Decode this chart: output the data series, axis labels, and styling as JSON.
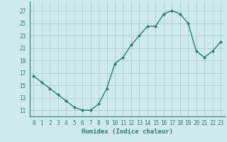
{
  "x": [
    0,
    1,
    2,
    3,
    4,
    5,
    6,
    7,
    8,
    9,
    10,
    11,
    12,
    13,
    14,
    15,
    16,
    17,
    18,
    19,
    20,
    21,
    22,
    23
  ],
  "y": [
    16.5,
    15.5,
    14.5,
    13.5,
    12.5,
    11.5,
    11.0,
    11.0,
    12.0,
    14.5,
    18.5,
    19.5,
    21.5,
    23.0,
    24.5,
    24.5,
    26.5,
    27.0,
    26.5,
    25.0,
    20.5,
    19.5,
    20.5,
    22.0
  ],
  "line_color": "#2d7d6e",
  "marker": "D",
  "marker_size": 2.0,
  "bg_color": "#ceeaea",
  "grid_color": "#b0cccc",
  "xlabel": "Humidex (Indice chaleur)",
  "xlabel_color": "#2d7d6e",
  "yticks": [
    11,
    13,
    15,
    17,
    19,
    21,
    23,
    25,
    27
  ],
  "xticks": [
    0,
    1,
    2,
    3,
    4,
    5,
    6,
    7,
    8,
    9,
    10,
    11,
    12,
    13,
    14,
    15,
    16,
    17,
    18,
    19,
    20,
    21,
    22,
    23
  ],
  "ylim": [
    10.0,
    28.5
  ],
  "xlim": [
    -0.5,
    23.5
  ],
  "tick_fontsize": 5.5,
  "xlabel_fontsize": 6.5
}
